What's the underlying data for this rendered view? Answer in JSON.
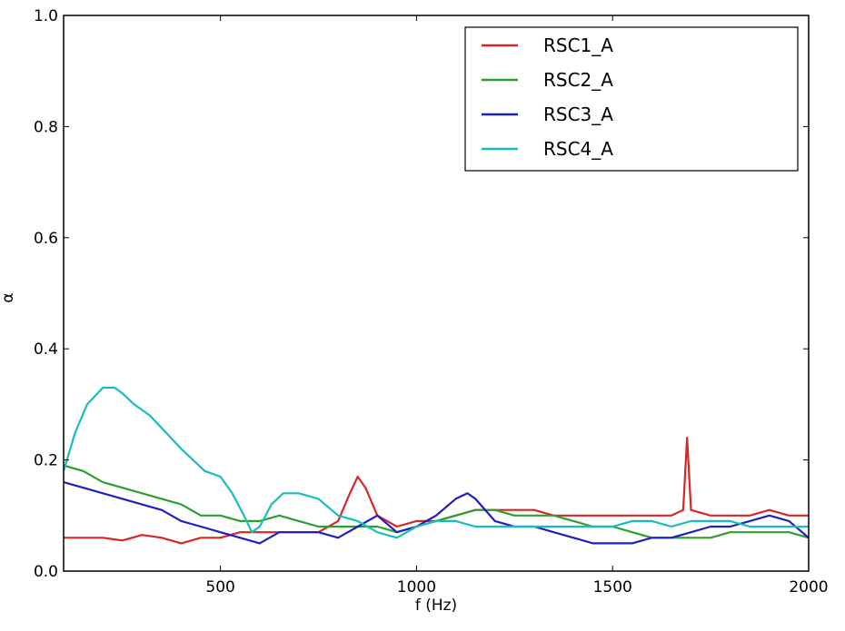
{
  "chart_data": {
    "type": "line",
    "xlabel": "f (Hz)",
    "ylabel": "α",
    "xlim": [
      100,
      2000
    ],
    "ylim": [
      0.0,
      1.0
    ],
    "x_ticks": [
      500,
      1000,
      1500,
      2000
    ],
    "x_tick_labels": [
      "500",
      "1000",
      "1500",
      "2000"
    ],
    "y_ticks": [
      0.0,
      0.2,
      0.4,
      0.6,
      0.8,
      1.0
    ],
    "y_tick_labels": [
      "0.0",
      "0.2",
      "0.4",
      "0.6",
      "0.8",
      "1.0"
    ],
    "grid": false,
    "legend_position": "top-right",
    "series": [
      {
        "name": "RSC1_A",
        "color": "#d62728",
        "x": [
          100,
          150,
          200,
          250,
          300,
          350,
          400,
          450,
          500,
          550,
          600,
          650,
          700,
          750,
          800,
          830,
          850,
          870,
          900,
          950,
          1000,
          1050,
          1100,
          1150,
          1200,
          1250,
          1300,
          1350,
          1400,
          1450,
          1500,
          1550,
          1600,
          1650,
          1680,
          1690,
          1700,
          1750,
          1800,
          1850,
          1900,
          1950,
          2000
        ],
        "y": [
          0.06,
          0.06,
          0.06,
          0.055,
          0.065,
          0.06,
          0.05,
          0.06,
          0.06,
          0.07,
          0.07,
          0.07,
          0.07,
          0.07,
          0.09,
          0.14,
          0.17,
          0.15,
          0.1,
          0.08,
          0.09,
          0.09,
          0.1,
          0.11,
          0.11,
          0.11,
          0.11,
          0.1,
          0.1,
          0.1,
          0.1,
          0.1,
          0.1,
          0.1,
          0.11,
          0.24,
          0.11,
          0.1,
          0.1,
          0.1,
          0.11,
          0.1,
          0.1
        ]
      },
      {
        "name": "RSC2_A",
        "color": "#2ca02c",
        "x": [
          100,
          150,
          200,
          250,
          300,
          350,
          400,
          450,
          500,
          550,
          600,
          650,
          700,
          750,
          800,
          850,
          900,
          950,
          1000,
          1050,
          1100,
          1150,
          1200,
          1250,
          1300,
          1350,
          1400,
          1450,
          1500,
          1550,
          1600,
          1650,
          1700,
          1750,
          1800,
          1850,
          1900,
          1950,
          2000
        ],
        "y": [
          0.19,
          0.18,
          0.16,
          0.15,
          0.14,
          0.13,
          0.12,
          0.1,
          0.1,
          0.09,
          0.09,
          0.1,
          0.09,
          0.08,
          0.08,
          0.08,
          0.08,
          0.07,
          0.08,
          0.09,
          0.1,
          0.11,
          0.11,
          0.1,
          0.1,
          0.1,
          0.09,
          0.08,
          0.08,
          0.07,
          0.06,
          0.06,
          0.06,
          0.06,
          0.07,
          0.07,
          0.07,
          0.07,
          0.06
        ]
      },
      {
        "name": "RSC3_A",
        "color": "#1f1fbf",
        "x": [
          100,
          150,
          200,
          250,
          300,
          350,
          400,
          450,
          500,
          550,
          600,
          650,
          700,
          750,
          800,
          850,
          900,
          950,
          1000,
          1050,
          1100,
          1130,
          1150,
          1200,
          1250,
          1300,
          1350,
          1400,
          1450,
          1500,
          1550,
          1600,
          1650,
          1700,
          1750,
          1800,
          1850,
          1900,
          1950,
          2000
        ],
        "y": [
          0.16,
          0.15,
          0.14,
          0.13,
          0.12,
          0.11,
          0.09,
          0.08,
          0.07,
          0.06,
          0.05,
          0.07,
          0.07,
          0.07,
          0.06,
          0.08,
          0.1,
          0.07,
          0.08,
          0.1,
          0.13,
          0.14,
          0.13,
          0.09,
          0.08,
          0.08,
          0.07,
          0.06,
          0.05,
          0.05,
          0.05,
          0.06,
          0.06,
          0.07,
          0.08,
          0.08,
          0.09,
          0.1,
          0.09,
          0.06
        ]
      },
      {
        "name": "RSC4_A",
        "color": "#17bebb",
        "x": [
          100,
          130,
          160,
          200,
          230,
          250,
          280,
          320,
          360,
          400,
          430,
          460,
          500,
          530,
          560,
          580,
          600,
          630,
          660,
          700,
          750,
          800,
          850,
          900,
          950,
          1000,
          1050,
          1100,
          1150,
          1200,
          1250,
          1300,
          1350,
          1400,
          1450,
          1500,
          1550,
          1600,
          1650,
          1700,
          1750,
          1800,
          1850,
          1900,
          1950,
          2000
        ],
        "y": [
          0.18,
          0.25,
          0.3,
          0.33,
          0.33,
          0.32,
          0.3,
          0.28,
          0.25,
          0.22,
          0.2,
          0.18,
          0.17,
          0.14,
          0.1,
          0.07,
          0.08,
          0.12,
          0.14,
          0.14,
          0.13,
          0.1,
          0.09,
          0.07,
          0.06,
          0.08,
          0.09,
          0.09,
          0.08,
          0.08,
          0.08,
          0.08,
          0.08,
          0.08,
          0.08,
          0.08,
          0.09,
          0.09,
          0.08,
          0.09,
          0.09,
          0.09,
          0.08,
          0.08,
          0.08,
          0.08
        ]
      }
    ]
  }
}
